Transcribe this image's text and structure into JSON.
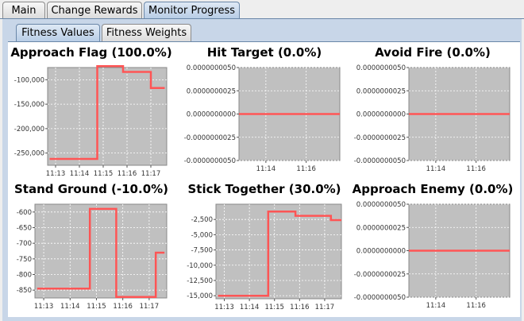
{
  "tabs": [
    {
      "label": "Main",
      "active": false
    },
    {
      "label": "Change Rewards",
      "active": false
    },
    {
      "label": "Monitor Progress",
      "active": true
    }
  ],
  "subtabs": [
    {
      "label": "Fitness Values",
      "active": true
    },
    {
      "label": "Fitness Weights",
      "active": false
    }
  ],
  "colors": {
    "line": "#ff5555",
    "plot_bg": "#c0c0c0"
  },
  "chart_data": [
    {
      "type": "line",
      "title": "Approach Flag (100.0%)",
      "xlim": [
        "11:12:40",
        "11:17:40"
      ],
      "ylim": [
        -275000,
        -75000
      ],
      "yticks": [
        -100000,
        -150000,
        -200000,
        -250000
      ],
      "ytick_labels": [
        "-100,000",
        "-150,000",
        "-200,000",
        "-250,000"
      ],
      "xticks": [
        "11:13",
        "11:14",
        "11:15",
        "11:16",
        "11:17"
      ],
      "grid": true,
      "series": [
        {
          "x": [
            "11:12:45",
            "11:14:45",
            "11:14:45",
            "11:15:50",
            "11:15:50",
            "11:17:00",
            "11:17:00",
            "11:17:35"
          ],
          "y": [
            -262000,
            -262000,
            -72000,
            -72000,
            -84000,
            -84000,
            -117000,
            -117000
          ]
        }
      ]
    },
    {
      "type": "line",
      "title": "Hit Target (0.0%)",
      "xlim": [
        "11:12:40",
        "11:17:40"
      ],
      "ylim": [
        -5e-09,
        5e-09
      ],
      "yticks": [
        5e-09,
        2.5e-09,
        0,
        -2.5e-09,
        -5e-09
      ],
      "ytick_labels": [
        "0.0000000050",
        "0.0000000025",
        "0.0000000000",
        "-0.0000000025",
        "-0.0000000050"
      ],
      "xticks": [
        "11:14",
        "11:16"
      ],
      "grid": true,
      "series": [
        {
          "x": [
            "11:12:40",
            "11:17:40"
          ],
          "y": [
            0,
            0
          ]
        }
      ]
    },
    {
      "type": "line",
      "title": "Avoid Fire (0.0%)",
      "xlim": [
        "11:12:40",
        "11:17:40"
      ],
      "ylim": [
        -5e-09,
        5e-09
      ],
      "yticks": [
        5e-09,
        2.5e-09,
        0,
        -2.5e-09,
        -5e-09
      ],
      "ytick_labels": [
        "0.0000000050",
        "0.0000000025",
        "0.0000000000",
        "-0.0000000025",
        "-0.0000000050"
      ],
      "xticks": [
        "11:14",
        "11:16"
      ],
      "grid": true,
      "series": [
        {
          "x": [
            "11:12:40",
            "11:17:40"
          ],
          "y": [
            0,
            0
          ]
        }
      ]
    },
    {
      "type": "line",
      "title": "Stand Ground (-10.0%)",
      "xlim": [
        "11:12:40",
        "11:17:40"
      ],
      "ylim": [
        -875,
        -575
      ],
      "yticks": [
        -600,
        -650,
        -700,
        -750,
        -800,
        -850
      ],
      "ytick_labels": [
        "-600",
        "-650",
        "-700",
        "-750",
        "-800",
        "-850"
      ],
      "xticks": [
        "11:13",
        "11:14",
        "11:15",
        "11:16",
        "11:17"
      ],
      "grid": true,
      "series": [
        {
          "x": [
            "11:12:45",
            "11:14:45",
            "11:14:45",
            "11:15:45",
            "11:15:45",
            "11:17:15",
            "11:17:15",
            "11:17:35"
          ],
          "y": [
            -845,
            -845,
            -590,
            -590,
            -872,
            -872,
            -730,
            -730
          ]
        }
      ]
    },
    {
      "type": "line",
      "title": "Stick Together (30.0%)",
      "xlim": [
        "11:12:40",
        "11:17:40"
      ],
      "ylim": [
        -15500,
        0
      ],
      "yticks": [
        -2500,
        -5000,
        -7500,
        -10000,
        -12500,
        -15000
      ],
      "ytick_labels": [
        "-2,500",
        "-5,000",
        "-7,500",
        "-10,000",
        "-12,500",
        "-15,000"
      ],
      "xticks": [
        "11:13",
        "11:14",
        "11:15",
        "11:16",
        "11:17"
      ],
      "grid": true,
      "series": [
        {
          "x": [
            "11:12:45",
            "11:14:45",
            "11:14:45",
            "11:15:50",
            "11:15:50",
            "11:17:15",
            "11:17:15",
            "11:17:40"
          ],
          "y": [
            -15000,
            -15000,
            -1200,
            -1200,
            -1900,
            -1900,
            -2600,
            -2600
          ]
        }
      ]
    },
    {
      "type": "line",
      "title": "Approach Enemy (0.0%)",
      "xlim": [
        "11:12:40",
        "11:17:40"
      ],
      "ylim": [
        -5e-09,
        5e-09
      ],
      "yticks": [
        5e-09,
        2.5e-09,
        0,
        -2.5e-09,
        -5e-09
      ],
      "ytick_labels": [
        "0.0000000050",
        "0.0000000025",
        "0.0000000000",
        "-0.0000000025",
        "-0.0000000050"
      ],
      "xticks": [
        "11:14",
        "11:16"
      ],
      "grid": true,
      "series": [
        {
          "x": [
            "11:12:40",
            "11:17:40"
          ],
          "y": [
            0,
            0
          ]
        }
      ]
    }
  ]
}
